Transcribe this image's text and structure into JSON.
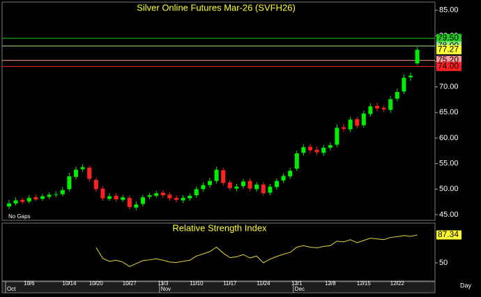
{
  "chart_data": [
    {
      "type": "candlestick",
      "title": "Silver Online Futures Mar-26 (SVFH26)",
      "note": "No Gaps",
      "x_axis_label": "Day",
      "categories": [
        null,
        null,
        null,
        "10/6",
        null,
        null,
        null,
        null,
        null,
        "10/14",
        null,
        null,
        null,
        "10/20",
        null,
        null,
        null,
        null,
        "10/27",
        null,
        null,
        null,
        null,
        "11/3",
        null,
        null,
        null,
        null,
        "11/10",
        null,
        null,
        null,
        null,
        "11/17",
        null,
        null,
        null,
        null,
        "11/24",
        null,
        null,
        null,
        null,
        "12/1",
        null,
        null,
        null,
        null,
        "12/8",
        null,
        null,
        null,
        null,
        "12/15",
        null,
        null,
        null,
        null,
        "12/22",
        null,
        null,
        null
      ],
      "month_ticks": [
        {
          "value": 0,
          "label": "Oct"
        },
        {
          "value": 23,
          "label": "Nov"
        },
        {
          "value": 43,
          "label": "Dec"
        }
      ],
      "open": [
        46.6,
        47.2,
        47.9,
        47.6,
        48.4,
        48.1,
        48.5,
        48.9,
        49.0,
        50.0,
        52.4,
        53.9,
        54.2,
        51.8,
        50.1,
        48.1,
        48.7,
        47.9,
        48.3,
        46.4,
        47.1,
        48.5,
        48.7,
        49.3,
        48.9,
        48.3,
        47.8,
        48.2,
        48.8,
        50.0,
        50.8,
        51.6,
        53.7,
        51.3,
        50.1,
        50.6,
        51.6,
        50.0,
        50.9,
        49.3,
        50.4,
        51.7,
        52.5,
        54.0,
        57.1,
        58.3,
        57.7,
        57.1,
        58.1,
        58.7,
        62.1,
        61.7,
        63.7,
        62.5,
        64.7,
        66.3,
        65.9,
        65.5,
        67.7,
        69.1,
        71.9,
        74.6
      ],
      "high": [
        47.9,
        48.4,
        48.3,
        48.9,
        48.9,
        49.1,
        49.4,
        49.6,
        50.4,
        53.2,
        54.4,
        54.9,
        54.6,
        52.3,
        50.6,
        49.2,
        49.2,
        48.9,
        48.8,
        47.6,
        48.9,
        49.3,
        49.7,
        49.8,
        49.4,
        48.8,
        48.8,
        49.2,
        50.5,
        51.3,
        52.2,
        54.4,
        54.2,
        51.8,
        51.0,
        52.0,
        52.1,
        51.4,
        51.4,
        51.0,
        52.1,
        53.1,
        54.2,
        57.6,
        58.8,
        58.9,
        58.3,
        58.7,
        59.2,
        62.6,
        62.7,
        64.2,
        64.2,
        65.4,
        66.8,
        66.9,
        66.4,
        68.2,
        69.7,
        72.4,
        72.8,
        77.8
      ],
      "low": [
        46.1,
        46.8,
        47.1,
        47.2,
        47.6,
        47.7,
        48.1,
        48.4,
        48.6,
        49.6,
        51.9,
        53.4,
        51.4,
        49.5,
        47.7,
        47.7,
        47.5,
        47.5,
        46.0,
        45.9,
        46.6,
        48.0,
        48.3,
        48.3,
        47.7,
        47.4,
        47.3,
        47.7,
        48.3,
        49.5,
        50.3,
        51.1,
        50.7,
        49.7,
        49.6,
        50.1,
        49.6,
        49.5,
        48.7,
        48.8,
        49.9,
        51.2,
        52.0,
        53.6,
        56.6,
        57.0,
        56.6,
        56.5,
        57.6,
        58.2,
        61.2,
        61.2,
        61.9,
        62.0,
        64.2,
        65.2,
        65.0,
        64.9,
        67.2,
        68.6,
        71.2,
        74.3
      ],
      "close": [
        47.2,
        47.8,
        47.5,
        48.3,
        48.0,
        48.6,
        48.9,
        49.0,
        49.8,
        52.5,
        53.8,
        54.3,
        52.0,
        50.0,
        48.2,
        48.6,
        48.0,
        48.4,
        46.5,
        47.0,
        48.4,
        48.8,
        49.2,
        48.8,
        48.2,
        47.9,
        48.3,
        48.7,
        50.0,
        50.8,
        51.6,
        53.8,
        51.2,
        50.2,
        50.5,
        51.5,
        50.1,
        50.9,
        49.2,
        50.5,
        51.6,
        52.6,
        53.6,
        57.0,
        58.2,
        57.6,
        57.2,
        58.1,
        58.6,
        62.0,
        61.8,
        63.6,
        62.4,
        64.8,
        66.2,
        65.8,
        65.6,
        67.6,
        69.0,
        71.8,
        72.2,
        77.27
      ],
      "up_color": "#00ee00",
      "down_color": "#ff2020",
      "ylim": [
        43.9,
        86.6
      ],
      "yticks": [
        {
          "value": 45,
          "label": "45.00"
        },
        {
          "value": 50,
          "label": "50.00"
        },
        {
          "value": 55,
          "label": "55.00"
        },
        {
          "value": 60,
          "label": "60.00"
        },
        {
          "value": 65,
          "label": "65.00"
        },
        {
          "value": 70,
          "label": "70.00"
        },
        {
          "value": 75,
          "label": "75.00"
        },
        {
          "value": 80,
          "label": "80.00"
        },
        {
          "value": 85,
          "label": "85.00"
        }
      ],
      "levels": [
        {
          "value": 79.5,
          "label": "79.50",
          "color": "#22cc22"
        },
        {
          "value": 78,
          "label": "78.00",
          "color": "#99ee88"
        },
        {
          "value": 75.2,
          "label": "75.20",
          "color": "#ff9999"
        },
        {
          "value": 74,
          "label": "74.00",
          "color": "#ff2020"
        }
      ],
      "last_price": {
        "value": 77.27,
        "label": "77.27",
        "color": "#ffff33"
      }
    },
    {
      "type": "line",
      "title": "Relative Strength Index",
      "color": "#e8d830",
      "values": [
        null,
        null,
        null,
        null,
        null,
        null,
        null,
        null,
        null,
        null,
        null,
        null,
        null,
        70.5,
        56,
        52,
        53.5,
        51,
        45,
        49,
        53,
        54,
        55.5,
        53.5,
        51,
        50.5,
        52,
        53.5,
        59,
        62,
        65,
        71,
        63,
        57,
        58,
        61,
        56.5,
        59,
        50,
        55,
        58.5,
        61.5,
        64,
        71,
        73,
        71,
        70,
        72,
        73,
        79,
        78,
        81,
        77,
        80,
        83,
        82,
        81,
        84,
        85,
        86.5,
        85.5,
        87.34
      ],
      "ylim": [
        25.7,
        103.2
      ],
      "yticks": [
        50
      ],
      "last_value": {
        "value": 87.34,
        "label": "87.34",
        "color": "#ffff33"
      }
    }
  ]
}
